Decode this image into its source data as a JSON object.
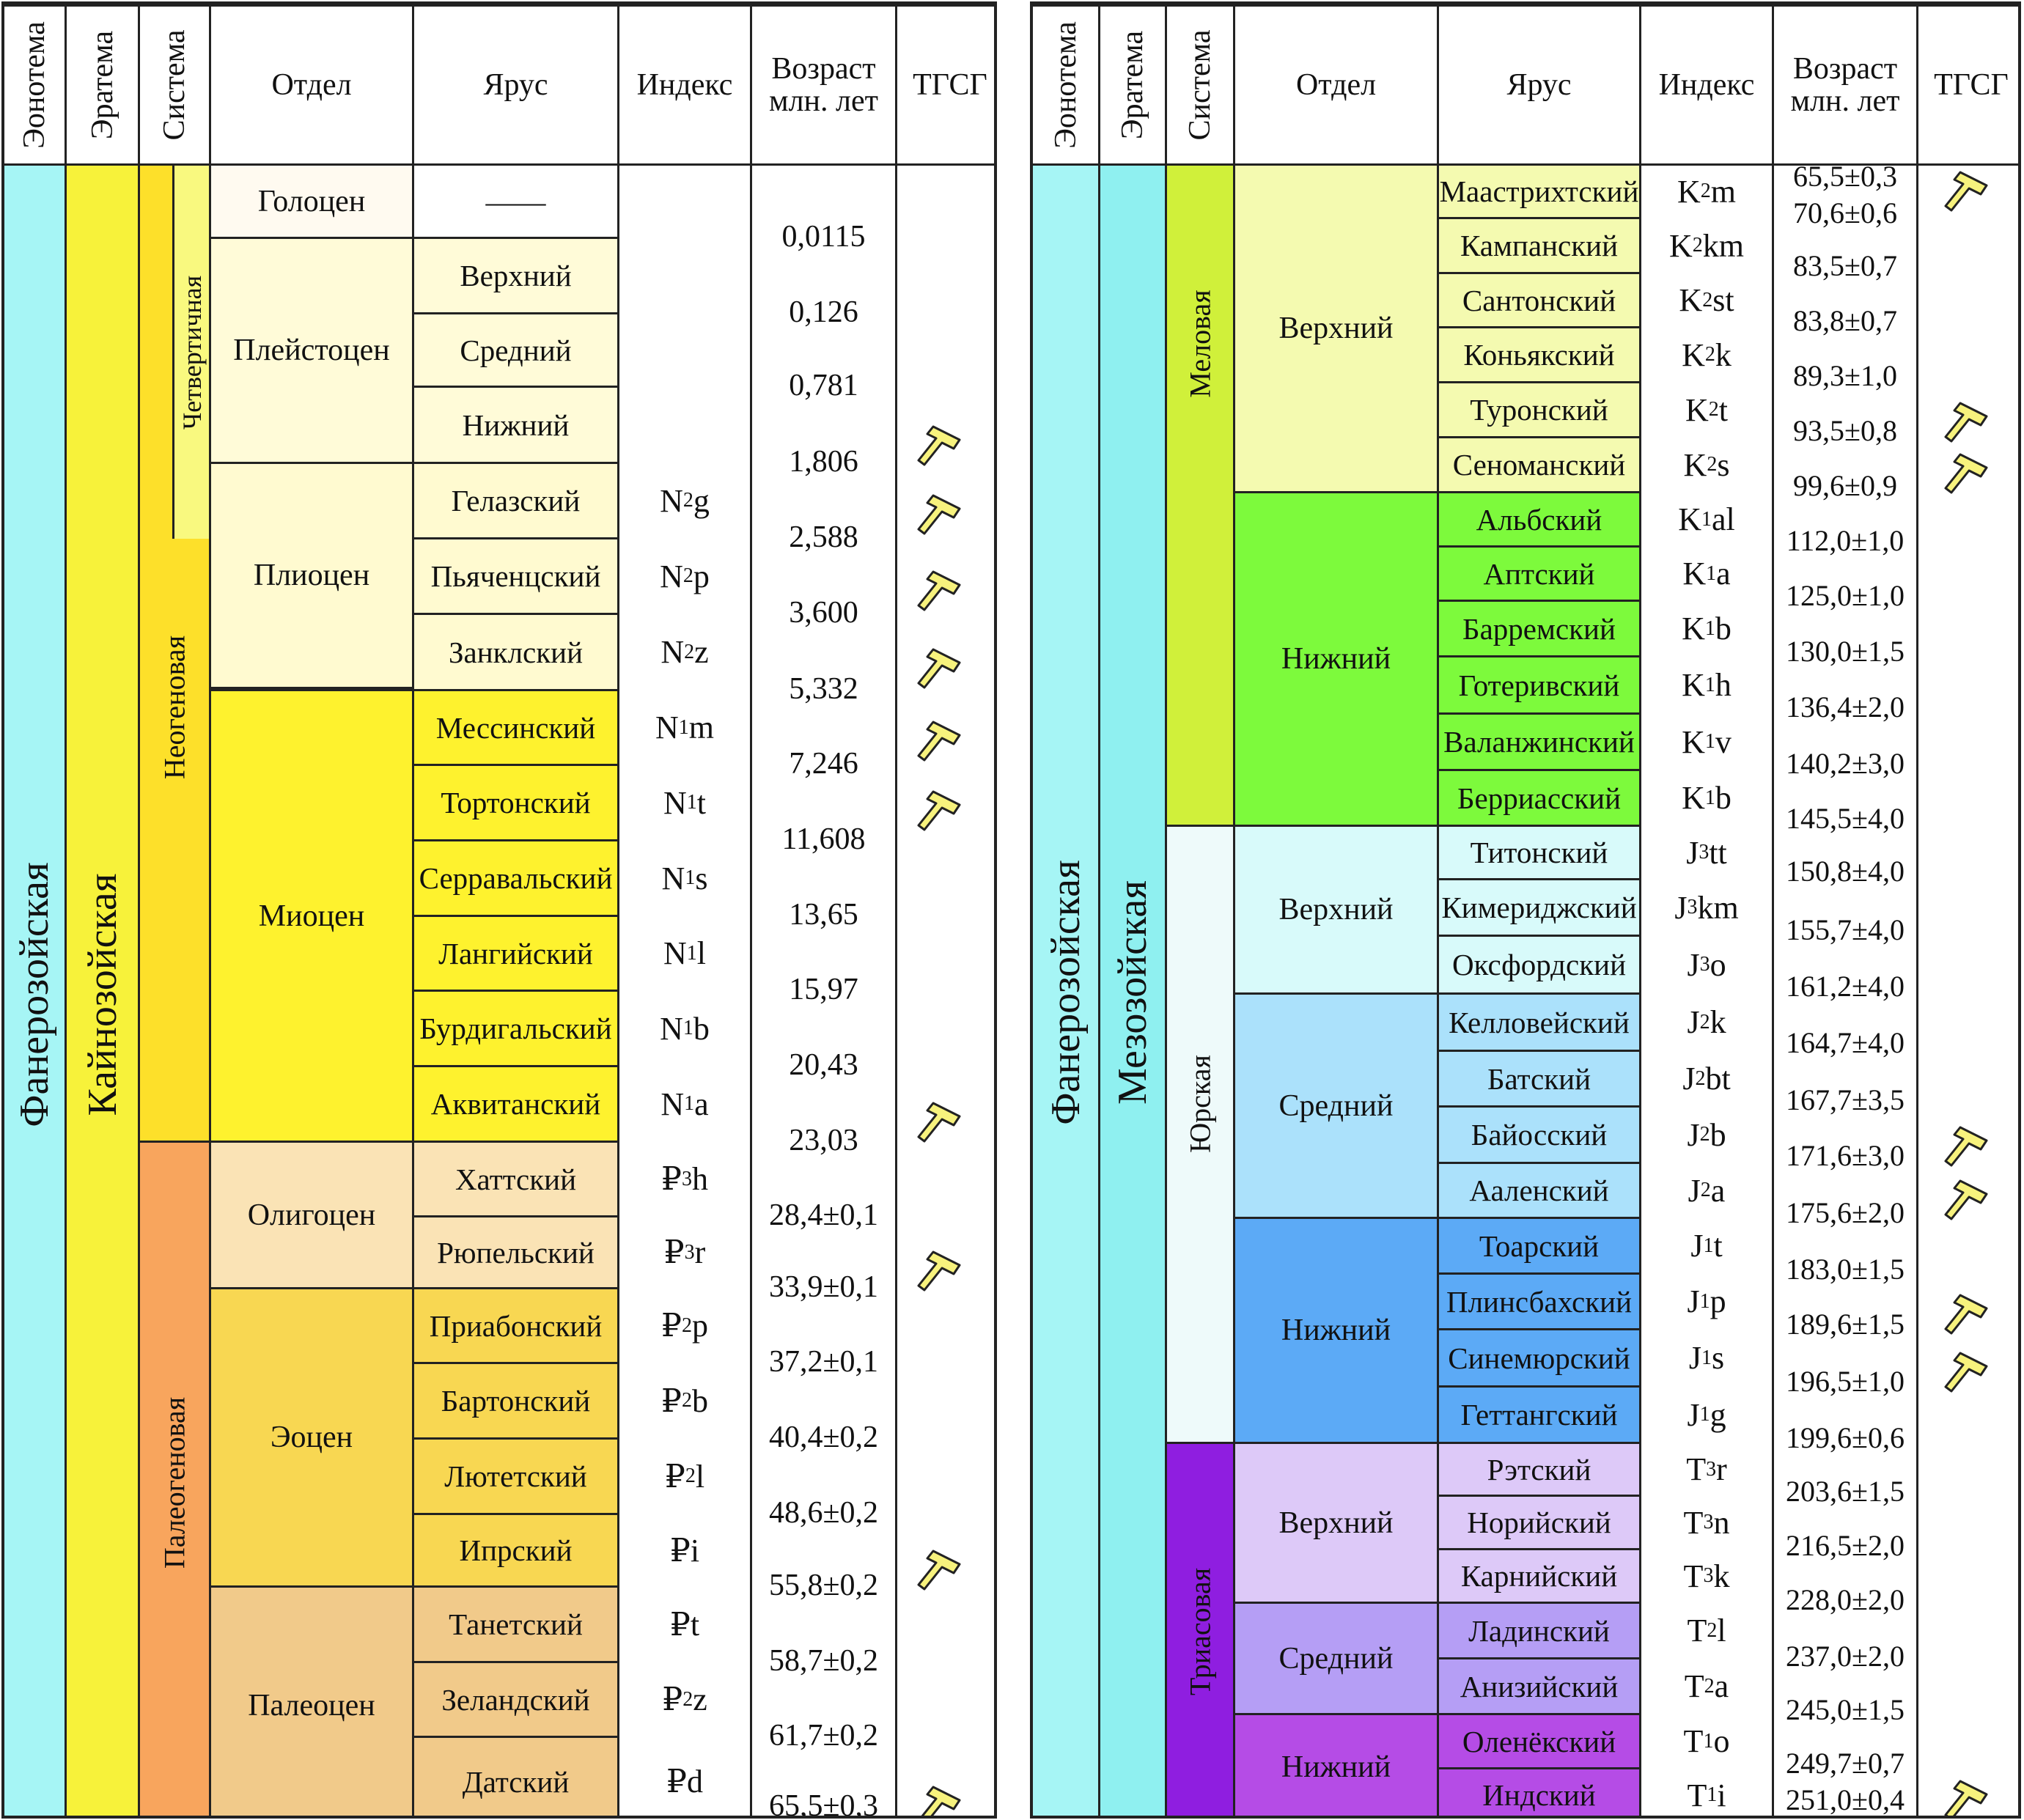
{
  "headers": {
    "eonothem": "Эонотема",
    "erathem": "Эратема",
    "system": "Система",
    "series": "Отдел",
    "stage": "Ярус",
    "index": "Индекс",
    "age_line1": "Возраст",
    "age_line2": "млн. лет",
    "gssp": "ТГСГ"
  },
  "colors": {
    "phanerozoic": "#a6f5f5",
    "cenozoic": "#f7f23a",
    "quaternary": "#f9f97f",
    "neogene": "#fde02a",
    "paleogene": "#f8a55d",
    "holocene": "#fffaf0",
    "pleistocene": "#fffbd8",
    "pliocene": "#fffad0",
    "miocene": "#fef22e",
    "oligocene": "#fae3b5",
    "eocene": "#f8d752",
    "paleocene": "#f1ca8a",
    "mesozoic": "#8ff0f0",
    "cretaceous": "#d0f03a",
    "upper_cretaceous": "#f4fab0",
    "lower_cretaceous": "#7dfa3c",
    "jurassic": "#eefafa",
    "upper_jurassic": "#d8fafa",
    "middle_jurassic": "#abe1fb",
    "lower_jurassic": "#5caaf6",
    "triassic": "#8f1ee0",
    "upper_triassic": "#ddc9f8",
    "middle_triassic": "#b59ef5",
    "lower_triassic": "#b54ce6",
    "gssp_marker": "#f7f27d"
  },
  "cenozoic_table": {
    "eonothem": "Фанерозойская",
    "erathem": "Кайнозойская",
    "systems": {
      "quaternary": "Четвертичная",
      "neogene": "Неогеновая",
      "paleogene": "Палеогеновая"
    },
    "series": [
      "Голоцен",
      "Плейстоцен",
      "Плиоцен",
      "Миоцен",
      "Олигоцен",
      "Эоцен",
      "Палеоцен"
    ],
    "holocene_dash": "——",
    "stages": [
      {
        "name": "Верхний",
        "base": "",
        "sub": "",
        "suf": ""
      },
      {
        "name": "Средний",
        "base": "",
        "sub": "",
        "suf": ""
      },
      {
        "name": "Нижний",
        "base": "",
        "sub": "",
        "suf": ""
      },
      {
        "name": "Гелазский",
        "base": "N",
        "sub": "2",
        "suf": "g"
      },
      {
        "name": "Пьяченцский",
        "base": "N",
        "sub": "2",
        "suf": "p"
      },
      {
        "name": "Занклский",
        "base": "N",
        "sub": "2",
        "suf": "z"
      },
      {
        "name": "Мессинский",
        "base": "N",
        "sub": "1",
        "suf": "m"
      },
      {
        "name": "Тортонский",
        "base": "N",
        "sub": "1",
        "suf": "t"
      },
      {
        "name": "Серравальский",
        "base": "N",
        "sub": "1",
        "suf": "s"
      },
      {
        "name": "Лангийский",
        "base": "N",
        "sub": "1",
        "suf": "l"
      },
      {
        "name": "Бурдигальский",
        "base": "N",
        "sub": "1",
        "suf": "b"
      },
      {
        "name": "Аквитанский",
        "base": "N",
        "sub": "1",
        "suf": "a"
      },
      {
        "name": "Хаттский",
        "base": "₽",
        "sub": "3",
        "suf": "h"
      },
      {
        "name": "Рюпельский",
        "base": "₽",
        "sub": "3",
        "suf": "r"
      },
      {
        "name": "Приабонский",
        "base": "₽",
        "sub": "2",
        "suf": "p"
      },
      {
        "name": "Бартонский",
        "base": "₽",
        "sub": "2",
        "suf": "b"
      },
      {
        "name": "Лютетский",
        "base": "₽",
        "sub": "2",
        "suf": "l"
      },
      {
        "name": "Ипрский",
        "base": "₽",
        "sub": "",
        "suf": "i"
      },
      {
        "name": "Танетский",
        "base": "₽",
        "sub": "",
        "suf": "t"
      },
      {
        "name": "Зеландский",
        "base": "₽",
        "sub": "2",
        "suf": "z"
      },
      {
        "name": "Датский",
        "base": "₽",
        "sub": "",
        "suf": "d"
      }
    ],
    "ages": [
      "0,0115",
      "0,126",
      "0,781",
      "1,806",
      "2,588",
      "3,600",
      "5,332",
      "7,246",
      "11,608",
      "13,65",
      "15,97",
      "20,43",
      "23,03",
      "28,4±0,1",
      "33,9±0,1",
      "37,2±0,1",
      "40,4±0,2",
      "48,6±0,2",
      "55,8±0,2",
      "58,7±0,2",
      "61,7±0,2",
      "65,5±0,3"
    ]
  },
  "mesozoic_table": {
    "eonothem": "Фанерозойская",
    "erathem": "Мезозойская",
    "systems": {
      "cretaceous": "Меловая",
      "jurassic": "Юрская",
      "triassic": "Триасовая"
    },
    "series": [
      "Верхний",
      "Нижний",
      "Верхний",
      "Средний",
      "Нижний",
      "Верхний",
      "Средний",
      "Нижний"
    ],
    "stages": [
      {
        "name": "Маастрихтский",
        "base": "K",
        "sub": "2",
        "suf": "m"
      },
      {
        "name": "Кампанский",
        "base": "K",
        "sub": "2",
        "suf": "km"
      },
      {
        "name": "Сантонский",
        "base": "K",
        "sub": "2",
        "suf": "st"
      },
      {
        "name": "Коньякский",
        "base": "K",
        "sub": "2",
        "suf": "k"
      },
      {
        "name": "Туронский",
        "base": "K",
        "sub": "2",
        "suf": "t"
      },
      {
        "name": "Сеноманский",
        "base": "K",
        "sub": "2",
        "suf": "s"
      },
      {
        "name": "Альбский",
        "base": "K",
        "sub": "1",
        "suf": "al"
      },
      {
        "name": "Аптский",
        "base": "K",
        "sub": "1",
        "suf": "a"
      },
      {
        "name": "Барремский",
        "base": "K",
        "sub": "1",
        "suf": "b"
      },
      {
        "name": "Готеривский",
        "base": "K",
        "sub": "1",
        "suf": "h"
      },
      {
        "name": "Валанжинский",
        "base": "K",
        "sub": "1",
        "suf": "v"
      },
      {
        "name": "Берриасский",
        "base": "K",
        "sub": "1",
        "suf": "b"
      },
      {
        "name": "Титонский",
        "base": "J",
        "sub": "3",
        "suf": "tt"
      },
      {
        "name": "Кимериджский",
        "base": "J",
        "sub": "3",
        "suf": "km"
      },
      {
        "name": "Оксфордский",
        "base": "J",
        "sub": "3",
        "suf": "o"
      },
      {
        "name": "Келловейский",
        "base": "J",
        "sub": "2",
        "suf": "k"
      },
      {
        "name": "Батский",
        "base": "J",
        "sub": "2",
        "suf": "bt"
      },
      {
        "name": "Байосский",
        "base": "J",
        "sub": "2",
        "suf": "b"
      },
      {
        "name": "Ааленский",
        "base": "J",
        "sub": "2",
        "suf": "a"
      },
      {
        "name": "Тоарский",
        "base": "J",
        "sub": "1",
        "suf": "t"
      },
      {
        "name": "Плинсбахский",
        "base": "J",
        "sub": "1",
        "suf": "p"
      },
      {
        "name": "Синемюрский",
        "base": "J",
        "sub": "1",
        "suf": "s"
      },
      {
        "name": "Геттангский",
        "base": "J",
        "sub": "1",
        "suf": "g"
      },
      {
        "name": "Рэтский",
        "base": "T",
        "sub": "3",
        "suf": "r"
      },
      {
        "name": "Норийский",
        "base": "T",
        "sub": "3",
        "suf": "n"
      },
      {
        "name": "Карнийский",
        "base": "T",
        "sub": "3",
        "suf": "k"
      },
      {
        "name": "Ладинский",
        "base": "T",
        "sub": "2",
        "suf": "l"
      },
      {
        "name": "Анизийский",
        "base": "T",
        "sub": "2",
        "suf": "a"
      },
      {
        "name": "Оленёкский",
        "base": "T",
        "sub": "1",
        "suf": "o"
      },
      {
        "name": "Индский",
        "base": "T",
        "sub": "1",
        "suf": "i"
      }
    ],
    "ages": [
      "65,5±0,3",
      "70,6±0,6",
      "83,5±0,7",
      "83,8±0,7",
      "89,3±1,0",
      "93,5±0,8",
      "99,6±0,9",
      "112,0±1,0",
      "125,0±1,0",
      "130,0±1,5",
      "136,4±2,0",
      "140,2±3,0",
      "145,5±4,0",
      "150,8±4,0",
      "155,7±4,0",
      "161,2±4,0",
      "164,7±4,0",
      "167,7±3,5",
      "171,6±3,0",
      "175,6±2,0",
      "183,0±1,5",
      "189,6±1,5",
      "196,5±1,0",
      "199,6±0,6",
      "203,6±1,5",
      "216,5±2,0",
      "228,0±2,0",
      "237,0±2,0",
      "245,0±1,5",
      "249,7±0,7",
      "251,0±0,4"
    ]
  }
}
